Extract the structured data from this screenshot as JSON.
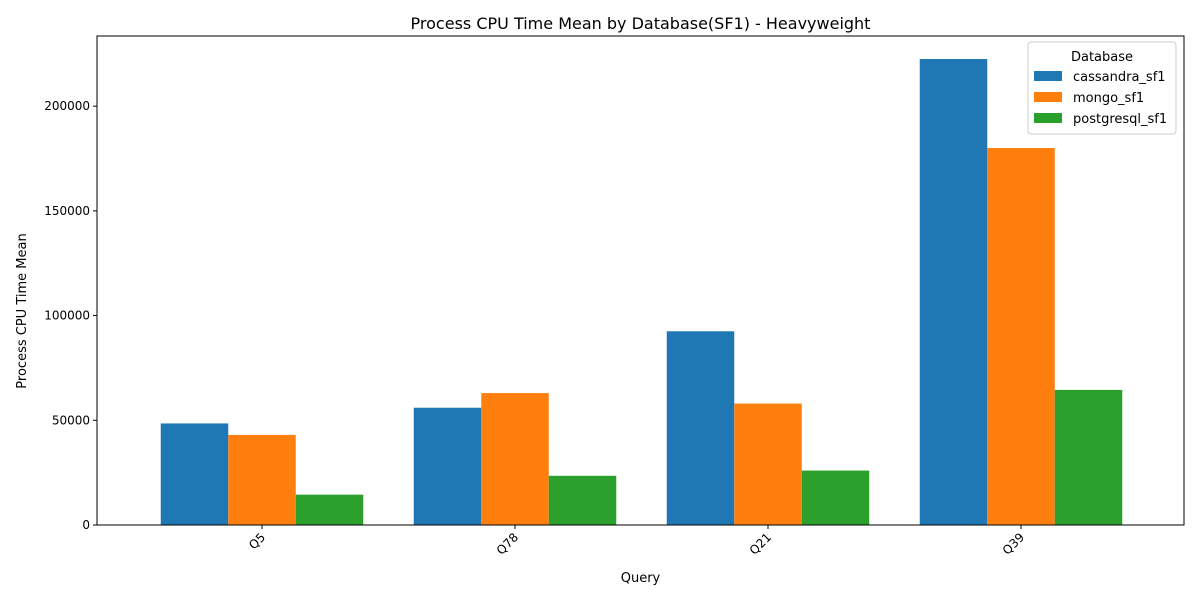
{
  "chart_data": {
    "type": "bar",
    "title": "Process CPU Time Mean by Database(SF1) - Heavyweight",
    "xlabel": "Query",
    "ylabel": "Process CPU Time Mean",
    "categories": [
      "Q5",
      "Q78",
      "Q21",
      "Q39"
    ],
    "series": [
      {
        "name": "cassandra_sf1",
        "color": "#1f77b4",
        "values": [
          48500,
          56000,
          92500,
          222500
        ]
      },
      {
        "name": "mongo_sf1",
        "color": "#ff7f0e",
        "values": [
          43000,
          63000,
          58000,
          180000
        ]
      },
      {
        "name": "postgresql_sf1",
        "color": "#2ca02c",
        "values": [
          14500,
          23500,
          26000,
          64500
        ]
      }
    ],
    "ylim": [
      0,
      233500
    ],
    "yticks": [
      0,
      50000,
      100000,
      150000,
      200000
    ],
    "legend": {
      "title": "Database",
      "placement": "top-right"
    },
    "grid": false
  }
}
